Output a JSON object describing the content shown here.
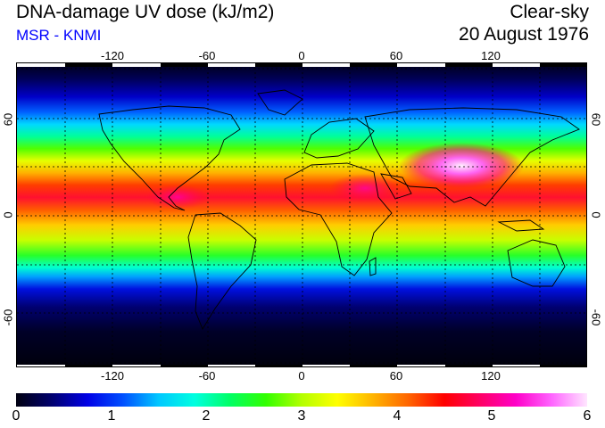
{
  "header": {
    "title": "DNA-damage UV dose (kJ/m2)",
    "subtitle": "MSR - KNMI",
    "sky": "Clear-sky",
    "date": "20 August 1976"
  },
  "colors": {
    "subtitle": "#0000ff",
    "scale": [
      "#000010",
      "#00006e",
      "#0000e6",
      "#0050ff",
      "#00c8ff",
      "#00ffe0",
      "#00ff64",
      "#32ff00",
      "#b4ff00",
      "#ffff00",
      "#ffb400",
      "#ff6400",
      "#ff0000",
      "#ff0064",
      "#ff00c8",
      "#ff64ff",
      "#ffe6ff"
    ]
  },
  "map": {
    "lon_labels": [
      "-120",
      "-60",
      "0",
      "60",
      "120"
    ],
    "lat_labels": [
      "60",
      "0",
      "-60"
    ],
    "gridlines": true,
    "projection": "equirectangular"
  },
  "colorbar": {
    "labels": [
      "0",
      "1",
      "2",
      "3",
      "4",
      "5",
      "6"
    ],
    "min": 0,
    "max": 6
  }
}
